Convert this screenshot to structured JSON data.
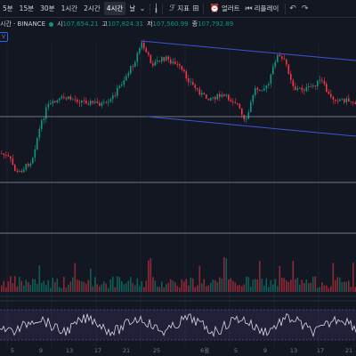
{
  "toolbar": {
    "timeframes": [
      {
        "label": "5분",
        "active": false
      },
      {
        "label": "15분",
        "active": false
      },
      {
        "label": "30분",
        "active": false
      },
      {
        "label": "1시간",
        "active": false
      },
      {
        "label": "2시간",
        "active": false
      },
      {
        "label": "4시간",
        "active": true
      },
      {
        "label": "날",
        "active": false
      }
    ],
    "indicators_label": "지표",
    "alert_label": "얼러트",
    "replay_label": "리플레이"
  },
  "legend": {
    "symbol": "시간 · BINANCE",
    "open_key": "시",
    "open_value": "107,654.21",
    "high_key": "고",
    "high_value": "107,824.31",
    "low_key": "저",
    "low_value": "107,560.99",
    "close_key": "종",
    "close_value": "107,792.89"
  },
  "badge_text": "V",
  "chart_data": {
    "type": "candlestick",
    "x_tick_labels": [
      "5",
      "9",
      "13",
      "17",
      "21",
      "25",
      "6월",
      "5",
      "9",
      "13",
      "17",
      "21"
    ],
    "horizontal_levels": [
      "upper",
      "lower",
      "bottom"
    ],
    "trendlines": 2,
    "panes": [
      "price",
      "volume",
      "oscillator"
    ],
    "colors": {
      "up": "#089981",
      "down": "#f23645",
      "trendline": "#3f51d8",
      "level": "#9598a1",
      "oscillator": "#d8d9e8",
      "oscillator_band": "#7e57c2"
    }
  }
}
